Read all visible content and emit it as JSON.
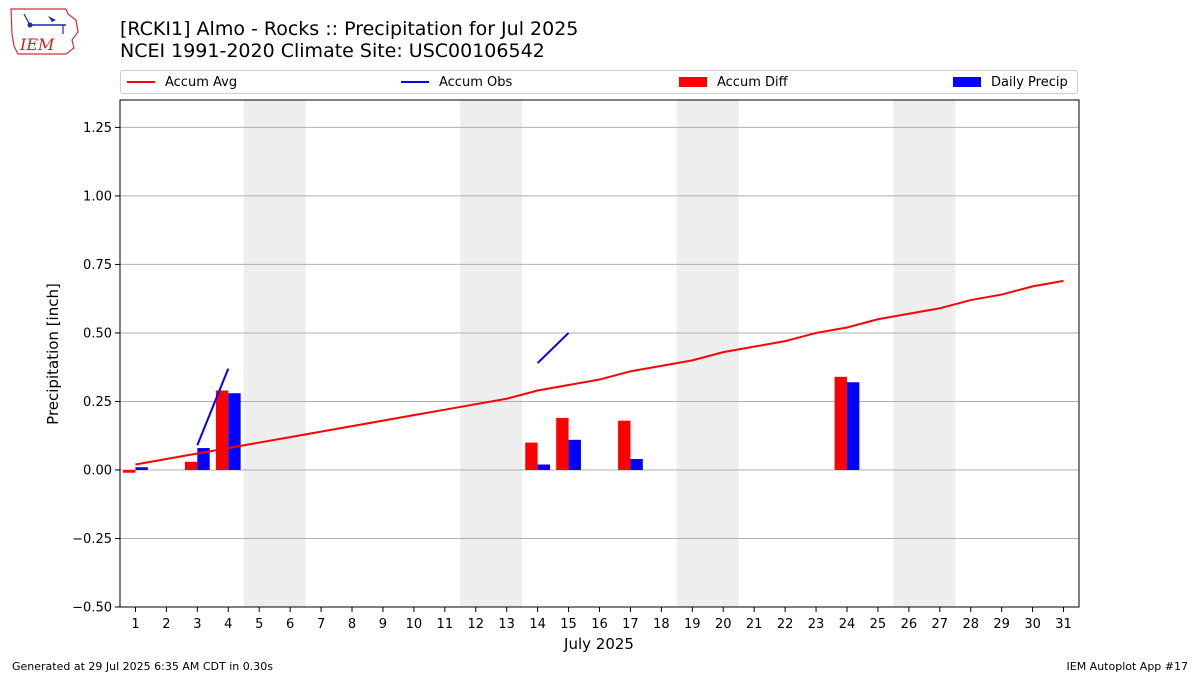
{
  "header": {
    "title_line1": "[RCKI1] Almo - Rocks :: Precipitation for Jul 2025",
    "title_line2": "NCEI 1991-2020 Climate Site: USC00106542",
    "logo_text": "IEM"
  },
  "footer": {
    "generated": "Generated at 29 Jul 2025 6:35 AM CDT in 0.30s",
    "app": "IEM Autoplot App #17"
  },
  "legend": {
    "items": [
      {
        "label": "Accum Avg",
        "kind": "line",
        "color": "#ff0000"
      },
      {
        "label": "Accum Obs",
        "kind": "line",
        "color": "#0000ff"
      },
      {
        "label": "Accum Diff",
        "kind": "bar",
        "color": "#ff0000"
      },
      {
        "label": "Daily Precip",
        "kind": "bar",
        "color": "#0000ff"
      }
    ],
    "placement": "top"
  },
  "chart_data": {
    "type": "bar",
    "xlabel": "July 2025",
    "ylabel": "Precipitation [inch]",
    "x": [
      1,
      2,
      3,
      4,
      5,
      6,
      7,
      8,
      9,
      10,
      11,
      12,
      13,
      14,
      15,
      16,
      17,
      18,
      19,
      20,
      21,
      22,
      23,
      24,
      25,
      26,
      27,
      28,
      29,
      30,
      31
    ],
    "xlim": [
      0.5,
      31.5
    ],
    "ylim": [
      -0.5,
      1.35
    ],
    "yticks": [
      -0.5,
      -0.25,
      0.0,
      0.25,
      0.5,
      0.75,
      1.0,
      1.25
    ],
    "ytick_labels": [
      "−0.50",
      "−0.25",
      "0.00",
      "0.25",
      "0.50",
      "0.75",
      "1.00",
      "1.25"
    ],
    "grid": "horizontal",
    "weekend_shading": [
      [
        5,
        6
      ],
      [
        12,
        13
      ],
      [
        19,
        20
      ],
      [
        26,
        27
      ]
    ],
    "shade_color": "#eeeeee",
    "series": [
      {
        "name": "Accum Avg",
        "kind": "line",
        "color": "#ff0000",
        "values": [
          0.02,
          0.04,
          0.06,
          0.08,
          0.1,
          0.12,
          0.14,
          0.16,
          0.18,
          0.2,
          0.22,
          0.24,
          0.26,
          0.29,
          0.31,
          0.33,
          0.36,
          0.38,
          0.4,
          0.43,
          0.45,
          0.47,
          0.5,
          0.52,
          0.55,
          0.57,
          0.59,
          0.62,
          0.64,
          0.67,
          0.69
        ]
      },
      {
        "name": "Accum Obs",
        "kind": "line",
        "color": "#0000ff",
        "segments": [
          {
            "x": [
              3,
              4
            ],
            "values": [
              0.09,
              0.37
            ]
          },
          {
            "x": [
              14,
              15
            ],
            "values": [
              0.39,
              0.5
            ]
          }
        ]
      },
      {
        "name": "Accum Diff",
        "kind": "bar",
        "color": "#ff0000",
        "values": [
          -0.01,
          0,
          0.03,
          0.29,
          0,
          0,
          0,
          0,
          0,
          0,
          0,
          0,
          0,
          0.1,
          0.19,
          0,
          0.18,
          0,
          0,
          0,
          0,
          0,
          0,
          0.34,
          0,
          0,
          0,
          0,
          0,
          0,
          0
        ]
      },
      {
        "name": "Daily Precip",
        "kind": "bar",
        "color": "#0000ff",
        "values": [
          0.01,
          0,
          0.08,
          0.28,
          0,
          0,
          0,
          0,
          0,
          0,
          0,
          0,
          0,
          0.02,
          0.11,
          0,
          0.04,
          0,
          0,
          0,
          0,
          0,
          0,
          0.32,
          0,
          0,
          0,
          0,
          0,
          0,
          0
        ]
      }
    ]
  }
}
